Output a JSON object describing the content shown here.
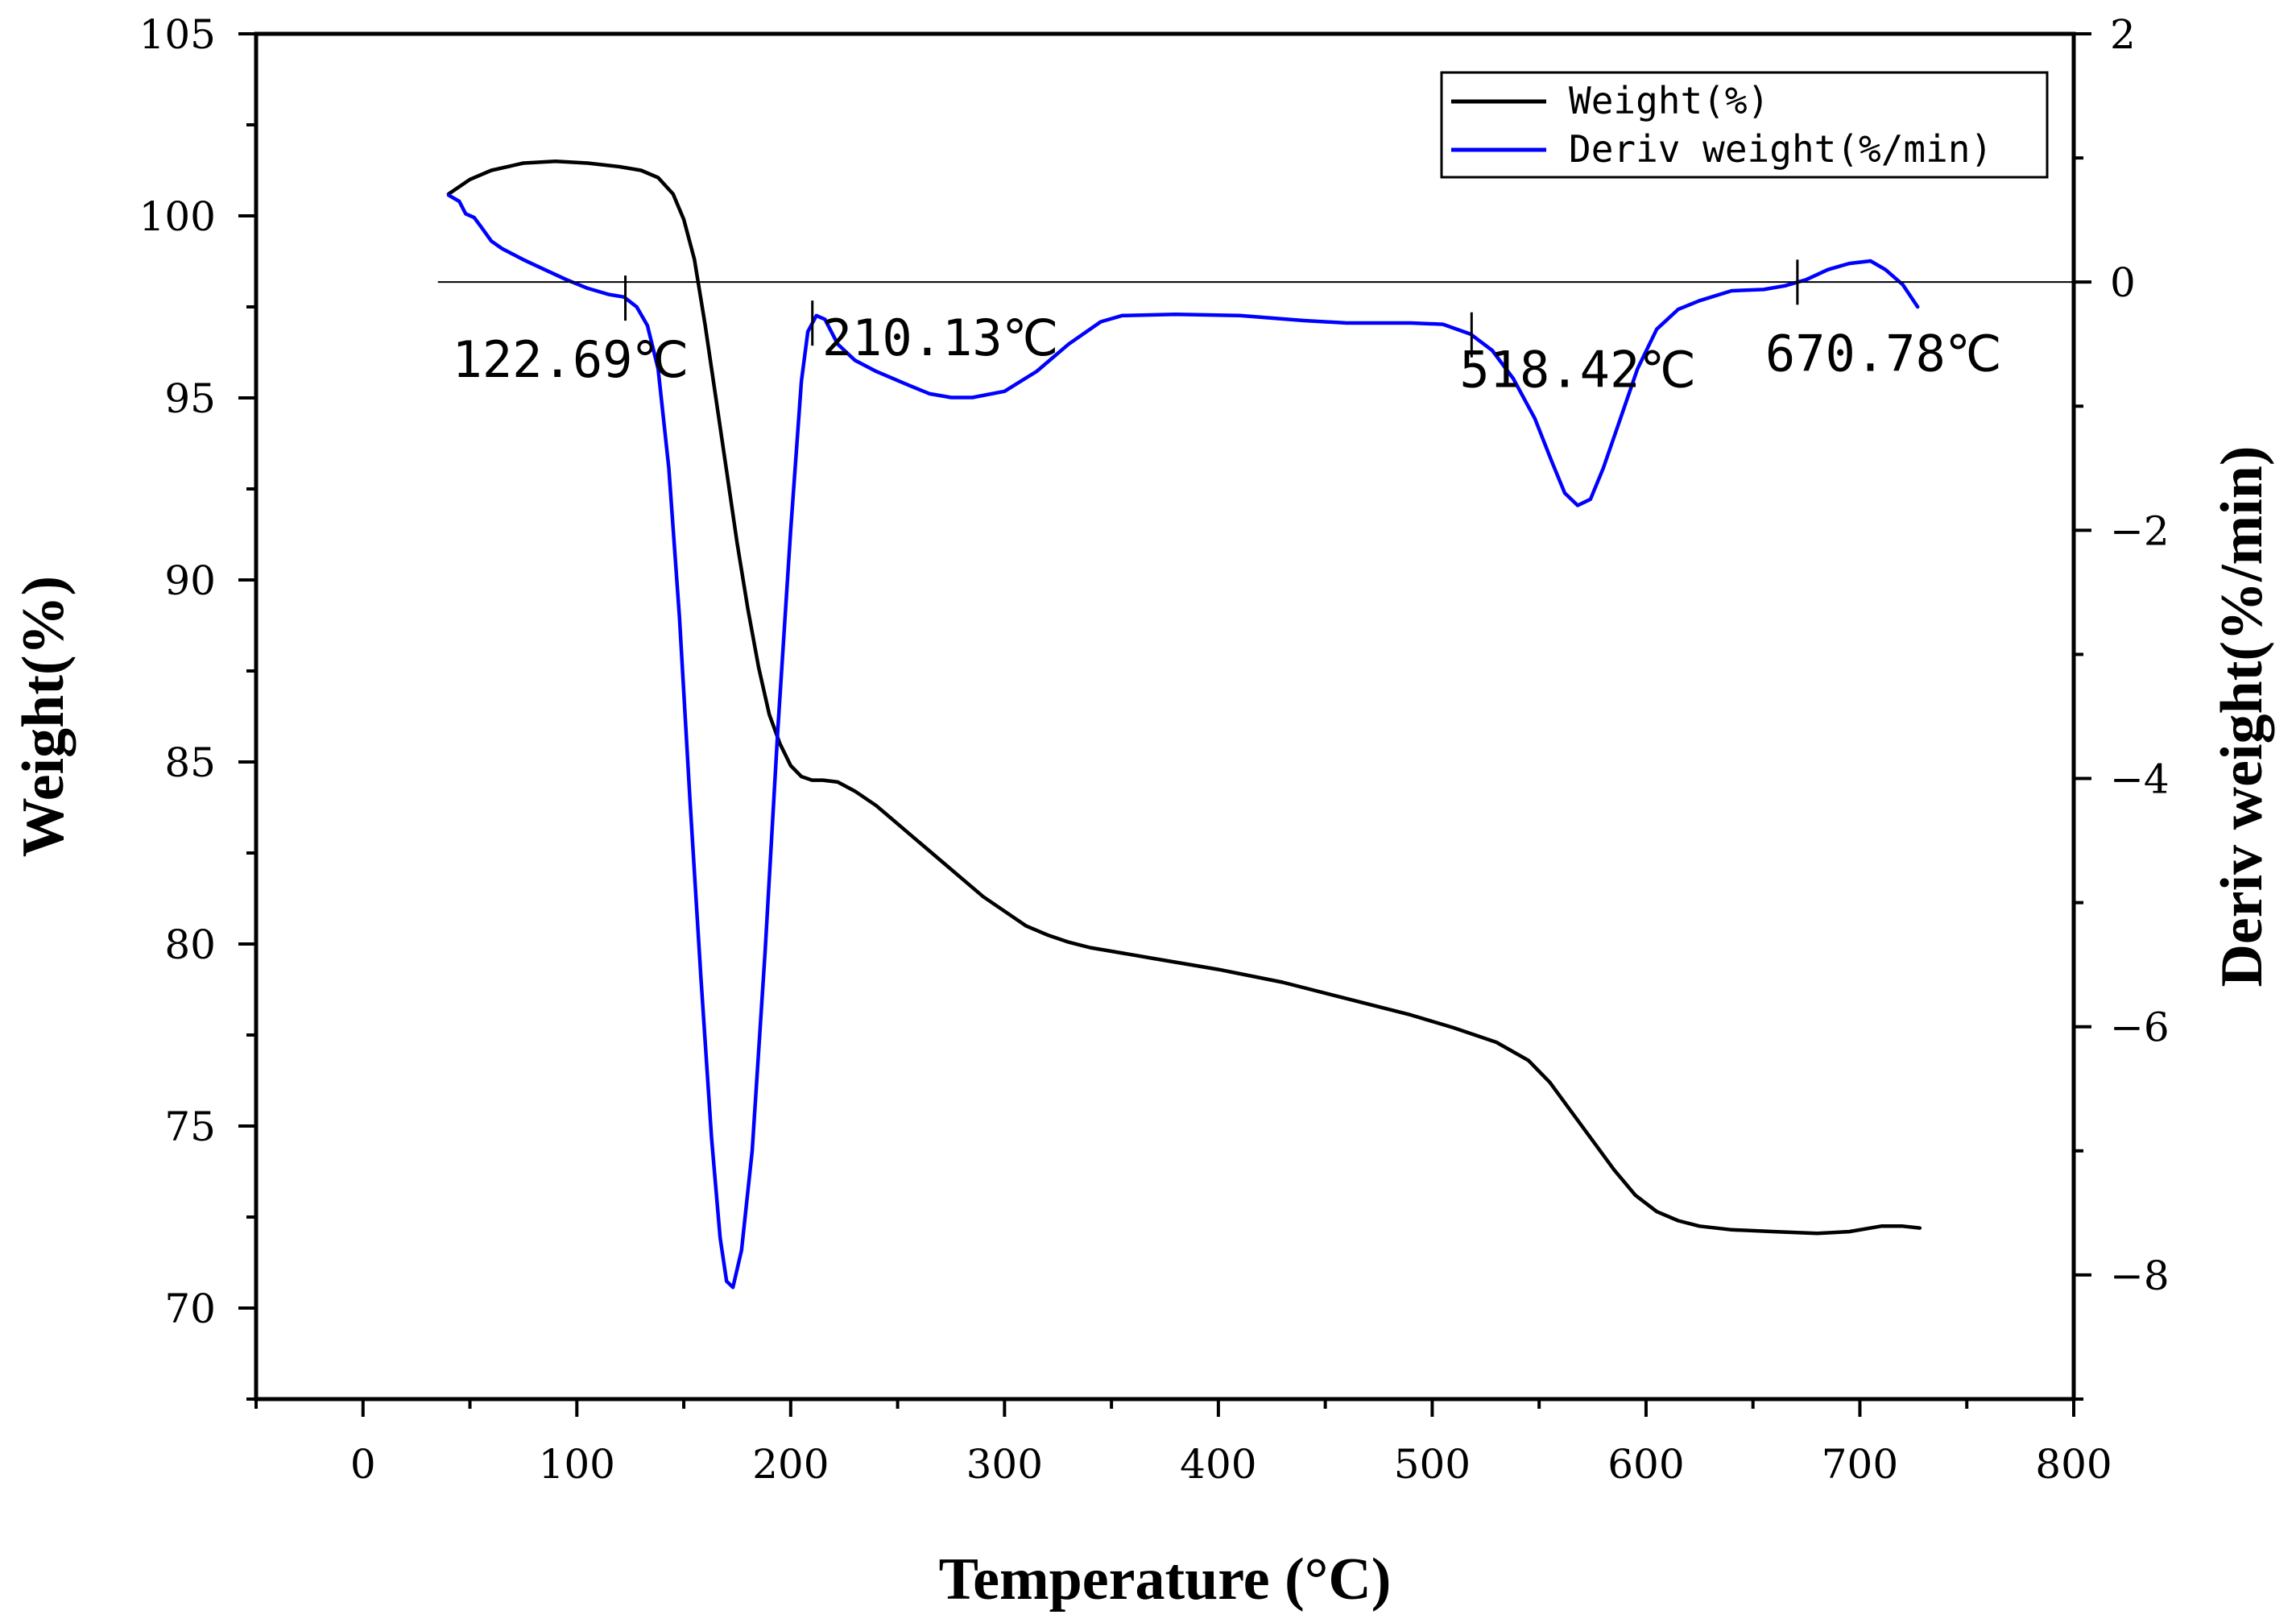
{
  "chart_data": {
    "type": "line",
    "xlabel": "Temperature (°C)",
    "ylabel_left": "Weight(%)",
    "ylabel_right": "Deriv weight(%/min)",
    "xlim": [
      -50,
      800
    ],
    "ylim_left": [
      67.5,
      105
    ],
    "ylim_right": [
      -9,
      2
    ],
    "x_ticks": [
      0,
      100,
      200,
      300,
      400,
      500,
      600,
      700,
      800
    ],
    "y_left_ticks": [
      70,
      75,
      80,
      85,
      90,
      95,
      100,
      105
    ],
    "y_right_ticks": [
      -8,
      -6,
      -4,
      -2,
      0,
      2
    ],
    "y_right_tick_labels": [
      "−8",
      "−6",
      "−4",
      "−2",
      "0",
      "2"
    ],
    "grid": false,
    "legend_position": "top-right",
    "zero_line_right": 0,
    "series": [
      {
        "name": "Weight(%)",
        "axis": "left",
        "color": "#000000",
        "points": [
          [
            40,
            100.6
          ],
          [
            50,
            101.0
          ],
          [
            60,
            101.25
          ],
          [
            75,
            101.45
          ],
          [
            90,
            101.5
          ],
          [
            105,
            101.45
          ],
          [
            120,
            101.35
          ],
          [
            130,
            101.25
          ],
          [
            138,
            101.05
          ],
          [
            145,
            100.6
          ],
          [
            150,
            99.9
          ],
          [
            155,
            98.8
          ],
          [
            160,
            97.0
          ],
          [
            165,
            95.0
          ],
          [
            170,
            93.0
          ],
          [
            175,
            91.0
          ],
          [
            180,
            89.2
          ],
          [
            185,
            87.6
          ],
          [
            190,
            86.3
          ],
          [
            195,
            85.5
          ],
          [
            200,
            84.9
          ],
          [
            205,
            84.6
          ],
          [
            210,
            84.5
          ],
          [
            215,
            84.5
          ],
          [
            222,
            84.45
          ],
          [
            230,
            84.2
          ],
          [
            240,
            83.8
          ],
          [
            250,
            83.3
          ],
          [
            260,
            82.8
          ],
          [
            270,
            82.3
          ],
          [
            280,
            81.8
          ],
          [
            290,
            81.3
          ],
          [
            300,
            80.9
          ],
          [
            310,
            80.5
          ],
          [
            320,
            80.25
          ],
          [
            330,
            80.05
          ],
          [
            340,
            79.9
          ],
          [
            350,
            79.8
          ],
          [
            370,
            79.6
          ],
          [
            400,
            79.3
          ],
          [
            430,
            78.95
          ],
          [
            460,
            78.5
          ],
          [
            490,
            78.05
          ],
          [
            510,
            77.7
          ],
          [
            530,
            77.3
          ],
          [
            545,
            76.8
          ],
          [
            555,
            76.2
          ],
          [
            565,
            75.4
          ],
          [
            575,
            74.6
          ],
          [
            585,
            73.8
          ],
          [
            595,
            73.1
          ],
          [
            605,
            72.65
          ],
          [
            615,
            72.4
          ],
          [
            625,
            72.25
          ],
          [
            640,
            72.15
          ],
          [
            660,
            72.1
          ],
          [
            680,
            72.05
          ],
          [
            695,
            72.1
          ],
          [
            710,
            72.25
          ],
          [
            720,
            72.25
          ],
          [
            728,
            72.2
          ]
        ]
      },
      {
        "name": "Deriv weight(%/min)",
        "axis": "right",
        "color": "#0000ff",
        "points": [
          [
            40,
            0.7
          ],
          [
            45,
            0.65
          ],
          [
            48,
            0.55
          ],
          [
            52,
            0.52
          ],
          [
            55,
            0.45
          ],
          [
            60,
            0.33
          ],
          [
            65,
            0.27
          ],
          [
            75,
            0.18
          ],
          [
            85,
            0.1
          ],
          [
            95,
            0.02
          ],
          [
            105,
            -0.05
          ],
          [
            115,
            -0.1
          ],
          [
            122,
            -0.12
          ],
          [
            128,
            -0.2
          ],
          [
            133,
            -0.35
          ],
          [
            138,
            -0.7
          ],
          [
            143,
            -1.5
          ],
          [
            148,
            -2.7
          ],
          [
            153,
            -4.2
          ],
          [
            158,
            -5.6
          ],
          [
            163,
            -6.9
          ],
          [
            167,
            -7.7
          ],
          [
            170,
            -8.05
          ],
          [
            173,
            -8.1
          ],
          [
            177,
            -7.8
          ],
          [
            182,
            -7.0
          ],
          [
            188,
            -5.4
          ],
          [
            194,
            -3.6
          ],
          [
            200,
            -2.0
          ],
          [
            205,
            -0.8
          ],
          [
            208,
            -0.4
          ],
          [
            212,
            -0.27
          ],
          [
            216,
            -0.3
          ],
          [
            222,
            -0.5
          ],
          [
            230,
            -0.63
          ],
          [
            240,
            -0.72
          ],
          [
            255,
            -0.83
          ],
          [
            265,
            -0.9
          ],
          [
            275,
            -0.93
          ],
          [
            285,
            -0.93
          ],
          [
            300,
            -0.88
          ],
          [
            315,
            -0.72
          ],
          [
            330,
            -0.5
          ],
          [
            345,
            -0.32
          ],
          [
            355,
            -0.27
          ],
          [
            380,
            -0.26
          ],
          [
            410,
            -0.27
          ],
          [
            440,
            -0.31
          ],
          [
            460,
            -0.33
          ],
          [
            490,
            -0.33
          ],
          [
            505,
            -0.34
          ],
          [
            518,
            -0.42
          ],
          [
            528,
            -0.55
          ],
          [
            538,
            -0.78
          ],
          [
            548,
            -1.1
          ],
          [
            556,
            -1.45
          ],
          [
            562,
            -1.7
          ],
          [
            568,
            -1.8
          ],
          [
            574,
            -1.75
          ],
          [
            580,
            -1.5
          ],
          [
            588,
            -1.1
          ],
          [
            596,
            -0.7
          ],
          [
            605,
            -0.38
          ],
          [
            615,
            -0.22
          ],
          [
            625,
            -0.15
          ],
          [
            640,
            -0.07
          ],
          [
            655,
            -0.06
          ],
          [
            665,
            -0.03
          ],
          [
            675,
            0.02
          ],
          [
            685,
            0.1
          ],
          [
            695,
            0.15
          ],
          [
            705,
            0.17
          ],
          [
            712,
            0.1
          ],
          [
            720,
            -0.02
          ],
          [
            727,
            -0.2
          ]
        ]
      }
    ],
    "annotations": [
      {
        "text": "122.69℃",
        "x": 122.69
      },
      {
        "text": "210.13℃",
        "x": 210.13
      },
      {
        "text": "518.42℃",
        "x": 518.42
      },
      {
        "text": "670.78℃",
        "x": 670.78
      }
    ]
  }
}
